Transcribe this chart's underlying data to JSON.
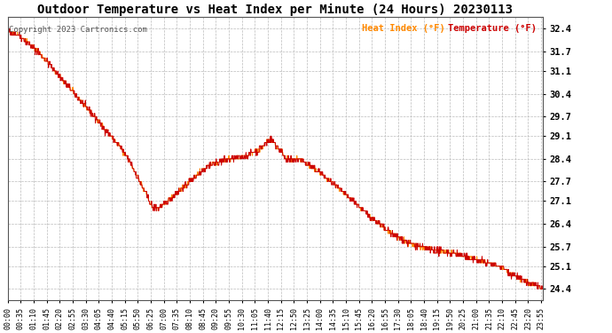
{
  "title": "Outdoor Temperature vs Heat Index per Minute (24 Hours) 20230113",
  "copyright": "Copyright 2023 Cartronics.com",
  "legend_heat": "Heat Index (°F)",
  "legend_temp": "Temperature (°F)",
  "heat_color": "#ff8800",
  "temp_color": "#cc0000",
  "background_color": "#ffffff",
  "grid_color": "#bbbbbb",
  "yticks": [
    24.4,
    25.1,
    25.7,
    26.4,
    27.1,
    27.7,
    28.4,
    29.1,
    29.7,
    30.4,
    31.1,
    31.7,
    32.4
  ],
  "ylim": [
    24.05,
    32.75
  ],
  "title_fontsize": 10,
  "copyright_fontsize": 6.5,
  "legend_fontsize": 7.5,
  "tick_fontsize": 6,
  "xtick_step": 35
}
